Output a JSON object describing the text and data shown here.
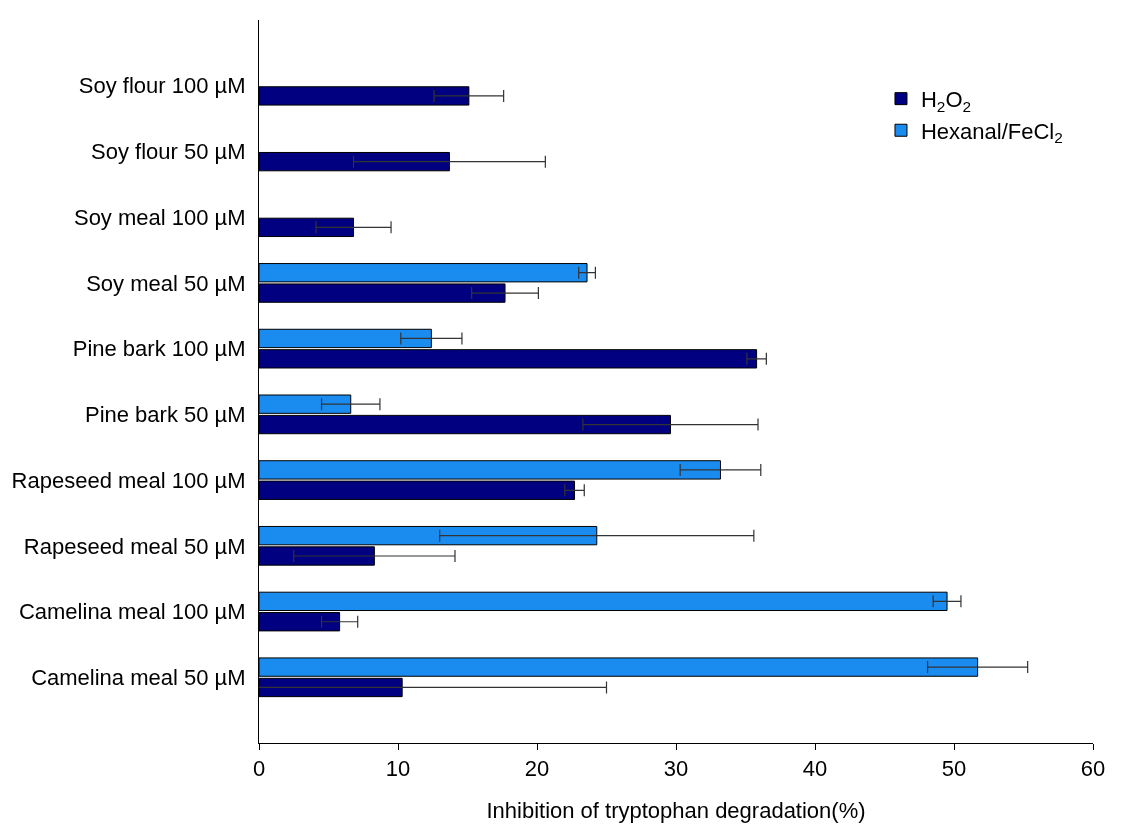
{
  "chart_data": {
    "type": "bar",
    "orientation": "horizontal",
    "xlabel": "Inhibition of tryptophan degradation(%)",
    "categories": [
      "Soy flour 100 µM",
      "Soy flour 50 µM",
      "Soy meal 100 µM",
      "Soy meal 50 µM",
      "Pine bark 100 µM",
      "Pine bark 50 µM",
      "Rapeseed meal 100 µM",
      "Rapeseed meal 50 µM",
      "Camelina meal 100 µM",
      "Camelina meal 50 µM"
    ],
    "series": [
      {
        "name": "H$_{2}$O$_{2}$",
        "color": "#000080",
        "values": [
          15.1,
          13.7,
          6.8,
          17.7,
          35.8,
          29.6,
          22.7,
          8.3,
          5.8,
          10.3
        ],
        "errors": [
          2.5,
          6.9,
          2.7,
          2.4,
          0.7,
          6.3,
          0.7,
          5.8,
          1.3,
          14.7
        ]
      },
      {
        "name": "Hexanal/FeCl$_{2}$",
        "color": "#1a8cf0",
        "values": [
          null,
          null,
          null,
          23.6,
          12.4,
          6.6,
          33.2,
          24.3,
          49.5,
          51.7
        ],
        "errors": [
          null,
          null,
          null,
          0.6,
          2.2,
          2.1,
          2.9,
          11.3,
          1.0,
          3.6
        ]
      }
    ],
    "xlim": [
      0,
      60
    ],
    "xticks": [
      0,
      10,
      20,
      30,
      40,
      50,
      60
    ],
    "legend": "top right"
  }
}
